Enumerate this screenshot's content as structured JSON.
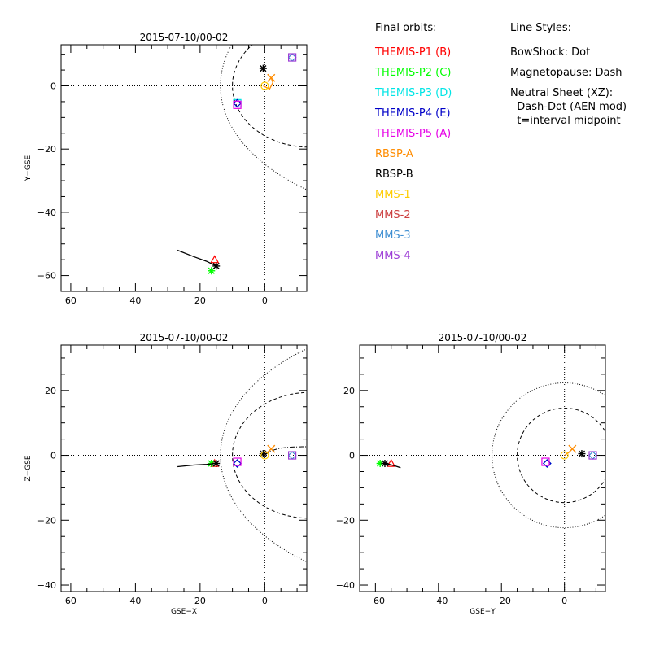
{
  "colors": {
    "themis_p1": "#ff0000",
    "themis_p2": "#00ff00",
    "themis_p3": "#00e5e5",
    "themis_p4": "#0000c8",
    "themis_p5": "#e600e6",
    "rbsp_a": "#ff8c00",
    "rbsp_b": "#000000",
    "mms_1": "#ffcc00",
    "mms_2": "#cc4040",
    "mms_3": "#3f8fd2",
    "mms_4": "#9c3cd6"
  },
  "legend": {
    "orbits_title": "Final orbits:",
    "orbits": [
      {
        "label": "THEMIS-P1 (B)",
        "color": "#ff0000"
      },
      {
        "label": "THEMIS-P2 (C)",
        "color": "#00ff00"
      },
      {
        "label": "THEMIS-P3 (D)",
        "color": "#00e5e5"
      },
      {
        "label": "THEMIS-P4 (E)",
        "color": "#0000c8"
      },
      {
        "label": "THEMIS-P5 (A)",
        "color": "#e600e6"
      },
      {
        "label": "RBSP-A",
        "color": "#ff8c00"
      },
      {
        "label": "RBSP-B",
        "color": "#000000"
      },
      {
        "label": "MMS-1",
        "color": "#ffcc00"
      },
      {
        "label": "MMS-2",
        "color": "#cc4040"
      },
      {
        "label": "MMS-3",
        "color": "#3f8fd2"
      },
      {
        "label": "MMS-4",
        "color": "#9c3cd6"
      }
    ],
    "styles_title": "Line Styles:",
    "styles": [
      "BowShock: Dot",
      "Magnetopause: Dash",
      "Neutral Sheet (XZ):",
      "  Dash-Dot (AEN mod)",
      "  t=interval midpoint"
    ]
  },
  "chart_data": [
    {
      "type": "scatter",
      "panel": "xy",
      "title": "2015-07-10/00-02",
      "xlabel": "",
      "ylabel": "Y-GSE",
      "xlim": [
        63,
        -13
      ],
      "ylim": [
        -65,
        13
      ],
      "xticks": [
        60,
        40,
        20,
        0
      ],
      "yticks": [
        -60,
        -40,
        -20,
        0
      ],
      "series": [
        {
          "id": "themis_p1",
          "x": 15.5,
          "y": -55.0,
          "symbol": "triangle"
        },
        {
          "id": "themis_p2",
          "x": 16.5,
          "y": -58.5,
          "symbol": "asterisk"
        },
        {
          "id": "themis_p3",
          "x": 8.5,
          "y": -5.5,
          "symbol": "square"
        },
        {
          "id": "themis_p4",
          "x": 8.5,
          "y": -5.5,
          "symbol": "diamond"
        },
        {
          "id": "themis_p5",
          "x": 8.5,
          "y": -6.0,
          "symbol": "square"
        },
        {
          "id": "rbsp_a",
          "x": -2.0,
          "y": 2.5,
          "symbol": "x",
          "trail": [
            [
              0.5,
              0.0
            ],
            [
              -1.5,
              -1.0
            ],
            [
              -2.5,
              1.0
            ],
            [
              -2.0,
              2.5
            ]
          ]
        },
        {
          "id": "rbsp_b",
          "x": 15.0,
          "y": -57.0,
          "symbol": "asterisk",
          "trail": [
            [
              27.0,
              -52.0
            ],
            [
              22.0,
              -54.0
            ],
            [
              18.0,
              -55.5
            ],
            [
              15.0,
              -57.0
            ]
          ]
        },
        {
          "id": "rbsp_b_2",
          "x": 0.5,
          "y": 5.5,
          "symbol": "asterisk"
        },
        {
          "id": "mms_1",
          "x": 0.0,
          "y": 0.0,
          "symbol": "circle"
        },
        {
          "id": "mms_2",
          "x": -8.5,
          "y": 9.0,
          "symbol": "square"
        },
        {
          "id": "mms_3",
          "x": -8.5,
          "y": 9.0,
          "symbol": "diamond"
        },
        {
          "id": "mms_4",
          "x": -8.5,
          "y": 9.0,
          "symbol": "square"
        }
      ]
    },
    {
      "type": "scatter",
      "panel": "xz",
      "title": "2015-07-10/00-02",
      "xlabel": "GSE-X",
      "ylabel": "Z-GSE",
      "xlim": [
        63,
        -13
      ],
      "ylim": [
        -42,
        34
      ],
      "xticks": [
        60,
        40,
        20,
        0
      ],
      "yticks": [
        -40,
        -20,
        0,
        20
      ],
      "series": [
        {
          "id": "themis_p1",
          "x": 15.5,
          "y": -2.5,
          "symbol": "triangle"
        },
        {
          "id": "themis_p2",
          "x": 16.5,
          "y": -2.5,
          "symbol": "asterisk"
        },
        {
          "id": "themis_p3",
          "x": 8.5,
          "y": -2.5,
          "symbol": "diamond"
        },
        {
          "id": "themis_p4",
          "x": 8.5,
          "y": -2.5,
          "symbol": "diamond"
        },
        {
          "id": "themis_p5",
          "x": 8.5,
          "y": -2.0,
          "symbol": "square"
        },
        {
          "id": "rbsp_a",
          "x": -2.0,
          "y": 2.0,
          "symbol": "x",
          "trail": [
            [
              0.5,
              0.0
            ],
            [
              -1.5,
              1.5
            ],
            [
              -2.0,
              2.0
            ]
          ]
        },
        {
          "id": "rbsp_b",
          "x": 15.0,
          "y": -2.5,
          "symbol": "asterisk",
          "trail": [
            [
              27.0,
              -3.5
            ],
            [
              22.0,
              -3.0
            ],
            [
              18.0,
              -2.8
            ],
            [
              15.0,
              -2.5
            ]
          ]
        },
        {
          "id": "rbsp_b_2",
          "x": 0.5,
          "y": 0.5,
          "symbol": "asterisk"
        },
        {
          "id": "mms_1",
          "x": 0.0,
          "y": 0.0,
          "symbol": "circle"
        },
        {
          "id": "mms_2",
          "x": -8.5,
          "y": 0.0,
          "symbol": "square"
        },
        {
          "id": "mms_3",
          "x": -8.5,
          "y": 0.0,
          "symbol": "diamond"
        },
        {
          "id": "mms_4",
          "x": -8.5,
          "y": 0.0,
          "symbol": "square"
        }
      ]
    },
    {
      "type": "scatter",
      "panel": "yz",
      "title": "2015-07-10/00-02",
      "xlabel": "GSE-Y",
      "ylabel": "",
      "xlim": [
        -65,
        13
      ],
      "ylim": [
        -42,
        34
      ],
      "xticks": [
        -60,
        -40,
        -20,
        0
      ],
      "yticks": [
        -40,
        -20,
        0,
        20
      ],
      "series": [
        {
          "id": "themis_p1",
          "x": -55.0,
          "y": -2.5,
          "symbol": "triangle"
        },
        {
          "id": "themis_p2",
          "x": -58.5,
          "y": -2.5,
          "symbol": "asterisk"
        },
        {
          "id": "themis_p3",
          "x": -5.5,
          "y": -2.5,
          "symbol": "diamond"
        },
        {
          "id": "themis_p4",
          "x": -5.5,
          "y": -2.5,
          "symbol": "diamond"
        },
        {
          "id": "themis_p5",
          "x": -6.0,
          "y": -2.0,
          "symbol": "square"
        },
        {
          "id": "rbsp_a",
          "x": 2.5,
          "y": 2.0,
          "symbol": "x",
          "trail": [
            [
              0.0,
              0.0
            ],
            [
              1.5,
              1.0
            ],
            [
              2.5,
              2.0
            ]
          ]
        },
        {
          "id": "rbsp_b",
          "x": -57.0,
          "y": -2.5,
          "symbol": "asterisk",
          "trail": [
            [
              -52.0,
              -3.8
            ],
            [
              -54.0,
              -3.2
            ],
            [
              -55.5,
              -2.8
            ],
            [
              -57.0,
              -2.5
            ]
          ]
        },
        {
          "id": "rbsp_b_2",
          "x": 5.5,
          "y": 0.5,
          "symbol": "asterisk"
        },
        {
          "id": "mms_1",
          "x": 0.0,
          "y": 0.0,
          "symbol": "circle"
        },
        {
          "id": "mms_2",
          "x": 9.0,
          "y": 0.0,
          "symbol": "square"
        },
        {
          "id": "mms_3",
          "x": 9.0,
          "y": 0.0,
          "symbol": "diamond"
        },
        {
          "id": "mms_4",
          "x": 9.0,
          "y": 0.0,
          "symbol": "square"
        }
      ]
    }
  ]
}
